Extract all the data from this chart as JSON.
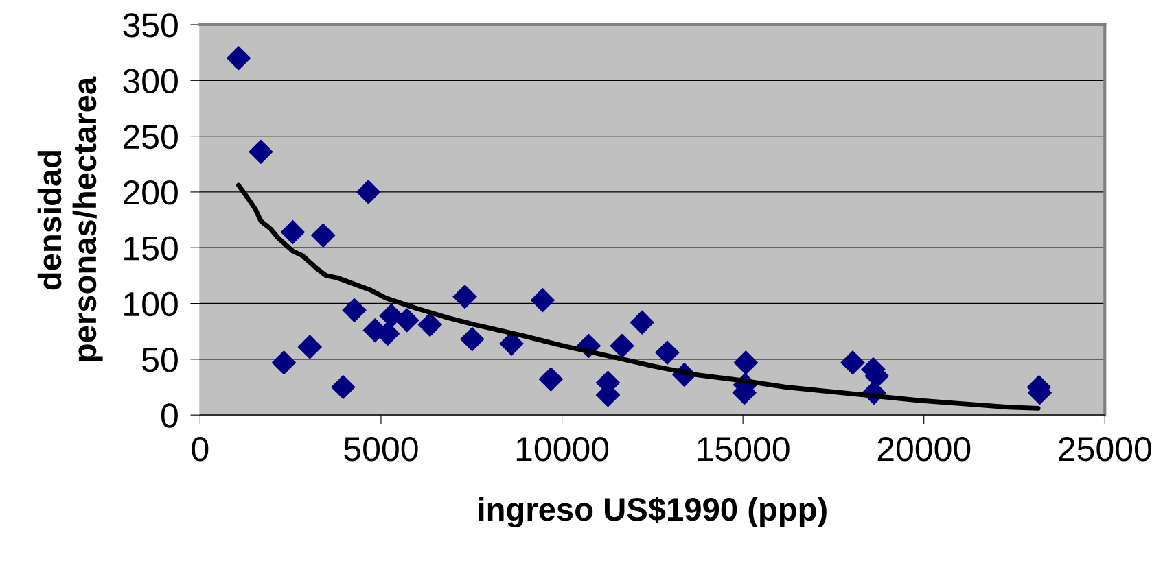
{
  "chart_data": {
    "type": "scatter",
    "xlabel": "ingreso US$1990 (ppp)",
    "ylabel": "densidad\npersonas/hectarea",
    "xlim": [
      0,
      25000
    ],
    "xticks": [
      0,
      5000,
      10000,
      15000,
      20000,
      25000
    ],
    "ylim": [
      0,
      350
    ],
    "yticks": [
      0,
      50,
      100,
      150,
      200,
      250,
      300,
      350
    ],
    "grid": "y",
    "marker": "diamond",
    "series": [
      {
        "color": "#000080",
        "x": [
          1066,
          1680,
          2316,
          2561,
          3033,
          3402,
          3955,
          4262,
          4652,
          4836,
          5184,
          5287,
          5717,
          6352,
          7316,
          7520,
          8607,
          9467,
          9693,
          10738,
          11270,
          11270,
          11660,
          12213,
          12910,
          13381,
          15040,
          15060,
          15080,
          18033,
          18600,
          18700,
          18620,
          23180,
          23200
        ],
        "values": [
          320,
          236,
          47,
          164,
          61,
          161,
          25,
          94,
          200,
          76,
          73,
          89,
          85,
          81,
          106,
          68,
          64,
          103,
          32,
          62,
          29,
          18,
          62,
          83,
          56,
          36,
          20,
          27,
          47,
          47,
          41,
          35,
          20,
          25,
          20
        ]
      },
      {
        "type": "line",
        "color": "#000000",
        "marker": "none",
        "line_style": "solid",
        "x": [
          1066,
          1332,
          1537,
          1680,
          1947,
          2152,
          2561,
          2828,
          3238,
          3484,
          3791,
          4713,
          5123,
          5943,
          6762,
          7582,
          8811,
          10041,
          11270,
          12500,
          13730,
          14959,
          16189,
          17418,
          18648,
          19877,
          21107,
          22336,
          23156
        ],
        "values": [
          206,
          194,
          184,
          174,
          167,
          159,
          147,
          143,
          131,
          125,
          123,
          112,
          105,
          96,
          88,
          81,
          72,
          62,
          53,
          44,
          36,
          31,
          25,
          21,
          17,
          13,
          10,
          7,
          6
        ]
      }
    ]
  }
}
